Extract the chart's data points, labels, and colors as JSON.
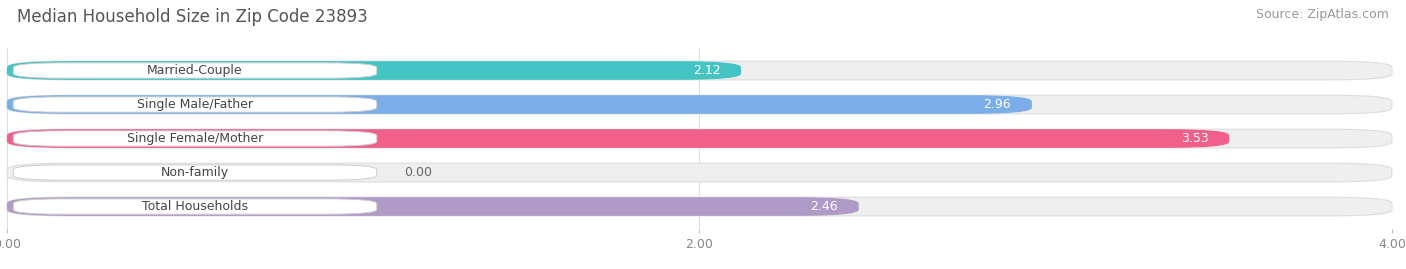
{
  "title": "Median Household Size in Zip Code 23893",
  "source": "Source: ZipAtlas.com",
  "categories": [
    "Married-Couple",
    "Single Male/Father",
    "Single Female/Mother",
    "Non-family",
    "Total Households"
  ],
  "values": [
    2.12,
    2.96,
    3.53,
    0.0,
    2.46
  ],
  "bar_colors": [
    "#45C4C4",
    "#7BAEE8",
    "#F0608A",
    "#F5C99A",
    "#B09AC8"
  ],
  "xlim": [
    0,
    4.0
  ],
  "xticks": [
    0.0,
    2.0,
    4.0
  ],
  "bar_height": 0.55,
  "bar_gap": 1.0,
  "figsize": [
    14.06,
    2.69
  ],
  "dpi": 100,
  "bg_color": "#FFFFFF",
  "bar_bg_color": "#EFEFEF",
  "title_fontsize": 12,
  "source_fontsize": 9,
  "label_fontsize": 9,
  "value_fontsize": 9
}
